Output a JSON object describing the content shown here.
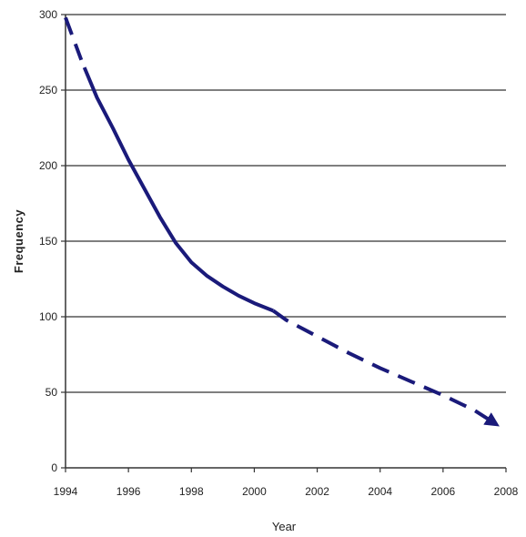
{
  "chart_data": {
    "type": "line",
    "title": "",
    "xlabel": "Year",
    "ylabel": "Frequency",
    "xlim": [
      1994,
      2008
    ],
    "ylim": [
      0,
      300
    ],
    "xticks": [
      1994,
      1996,
      1998,
      2000,
      2002,
      2004,
      2006,
      2008
    ],
    "yticks": [
      0,
      50,
      100,
      150,
      200,
      250,
      300
    ],
    "grid": "horizontal",
    "legend": "none",
    "colors": {
      "line": "#1a1a7a",
      "grid": "#333333",
      "axis": "#333333"
    },
    "series": [
      {
        "style": "dashed",
        "x": [
          1994,
          1994.5
        ],
        "y": [
          298,
          270
        ]
      },
      {
        "style": "solid",
        "x": [
          1994.6,
          1995,
          1995.5,
          1996,
          1996.5,
          1997,
          1997.5,
          1998,
          1998.5,
          1999,
          1999.5,
          2000,
          2000.6
        ],
        "y": [
          265,
          245,
          225,
          204,
          185,
          166,
          149,
          136,
          127,
          120,
          114,
          109,
          104
        ]
      },
      {
        "style": "dashed",
        "arrow": true,
        "x": [
          2000.6,
          2001,
          2002,
          2003,
          2004,
          2005,
          2006,
          2007,
          2007.6
        ],
        "y": [
          104,
          98,
          87,
          76,
          66,
          57,
          48,
          38,
          30
        ]
      }
    ]
  }
}
